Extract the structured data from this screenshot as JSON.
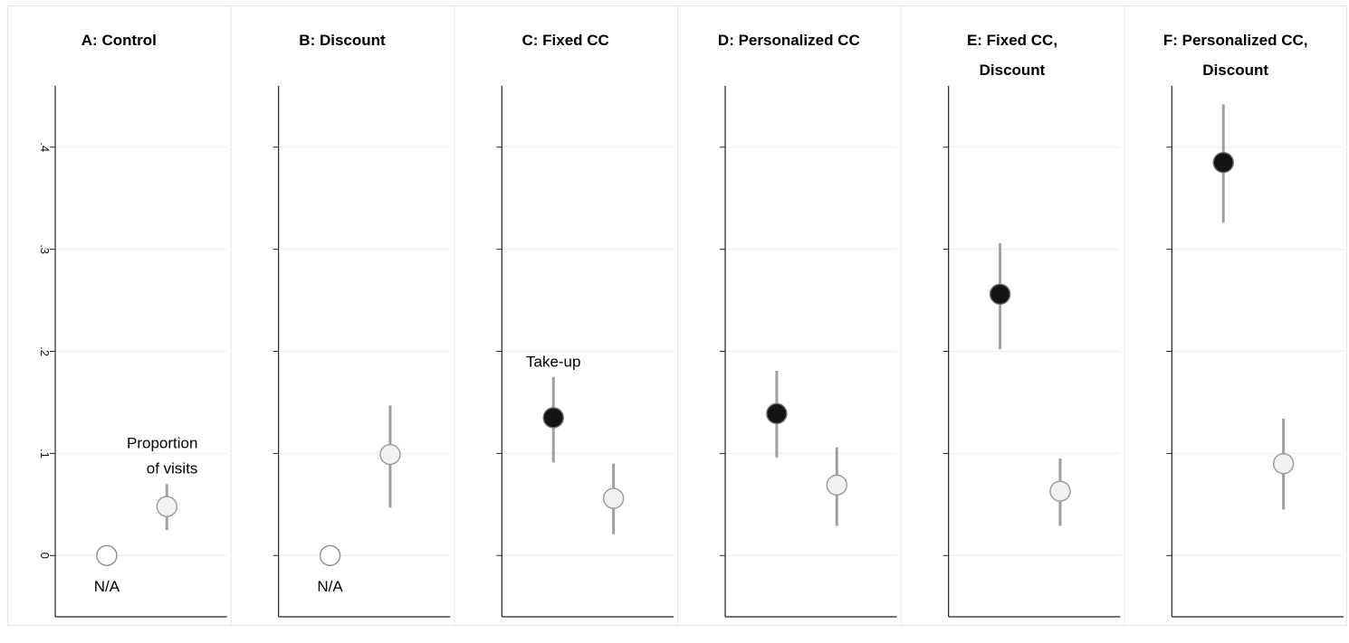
{
  "chart_data": {
    "type": "scatter",
    "y_axis": {
      "ylim": [
        -0.06,
        0.46
      ],
      "ticks": [
        0,
        0.1,
        0.2,
        0.3,
        0.4
      ],
      "tick_labels": [
        "0",
        ".1",
        ".2",
        ".3",
        ".4"
      ],
      "tick_label_orientation": "rotated",
      "grid": true
    },
    "series": [
      {
        "marker": "black-filled-circle"
      },
      {
        "marker": "light-gray-circle"
      },
      {
        "marker": "white-hollow-circle"
      }
    ],
    "panels": [
      {
        "title_lines": [
          "A: Control"
        ],
        "points": [
          {
            "series": 2,
            "x": 0.3,
            "y": 0.0
          },
          {
            "series": 1,
            "x": 0.65,
            "y": 0.048,
            "ci": [
              0.025,
              0.07
            ]
          }
        ],
        "annotations": [
          {
            "lines": [
              "N/A"
            ],
            "x": 0.3,
            "y": -0.035,
            "anchor": "middle"
          },
          {
            "lines": [
              "Proportion",
              "of visits"
            ],
            "x": 0.83,
            "y": 0.105,
            "anchor": "end"
          }
        ]
      },
      {
        "title_lines": [
          "B: Discount"
        ],
        "points": [
          {
            "series": 2,
            "x": 0.3,
            "y": 0.0
          },
          {
            "series": 1,
            "x": 0.65,
            "y": 0.099,
            "ci": [
              0.047,
              0.147
            ]
          }
        ],
        "annotations": [
          {
            "lines": [
              "N/A"
            ],
            "x": 0.3,
            "y": -0.035,
            "anchor": "middle"
          }
        ]
      },
      {
        "title_lines": [
          "C: Fixed CC"
        ],
        "points": [
          {
            "series": 0,
            "x": 0.3,
            "y": 0.135,
            "ci": [
              0.091,
              0.175
            ]
          },
          {
            "series": 1,
            "x": 0.65,
            "y": 0.056,
            "ci": [
              0.021,
              0.09
            ]
          }
        ],
        "annotations": [
          {
            "lines": [
              "Take-up"
            ],
            "x": 0.3,
            "y": 0.185,
            "anchor": "middle"
          }
        ]
      },
      {
        "title_lines": [
          "D: Personalized CC"
        ],
        "points": [
          {
            "series": 0,
            "x": 0.3,
            "y": 0.139,
            "ci": [
              0.096,
              0.181
            ]
          },
          {
            "series": 1,
            "x": 0.65,
            "y": 0.069,
            "ci": [
              0.029,
              0.106
            ]
          }
        ],
        "annotations": []
      },
      {
        "title_lines": [
          "E: Fixed CC,",
          "Discount"
        ],
        "points": [
          {
            "series": 0,
            "x": 0.3,
            "y": 0.256,
            "ci": [
              0.202,
              0.306
            ]
          },
          {
            "series": 1,
            "x": 0.65,
            "y": 0.063,
            "ci": [
              0.029,
              0.095
            ]
          }
        ],
        "annotations": []
      },
      {
        "title_lines": [
          "F: Personalized CC,",
          "Discount"
        ],
        "points": [
          {
            "series": 0,
            "x": 0.3,
            "y": 0.385,
            "ci": [
              0.326,
              0.442
            ]
          },
          {
            "series": 1,
            "x": 0.65,
            "y": 0.09,
            "ci": [
              0.045,
              0.134
            ]
          }
        ],
        "annotations": []
      }
    ],
    "colors": {
      "axis": "#222222",
      "grid": "#ebebeb",
      "separator": "#e8e8e8",
      "outer_border": "#e4e4e4",
      "ci_line": "#a0a0a0",
      "marker_black_fill": "#141414",
      "marker_light_fill": "#f1f1f1",
      "marker_light_stroke": "#9a9a9a",
      "marker_hollow_fill": "#ffffff",
      "marker_hollow_stroke": "#8c8c8c"
    }
  }
}
